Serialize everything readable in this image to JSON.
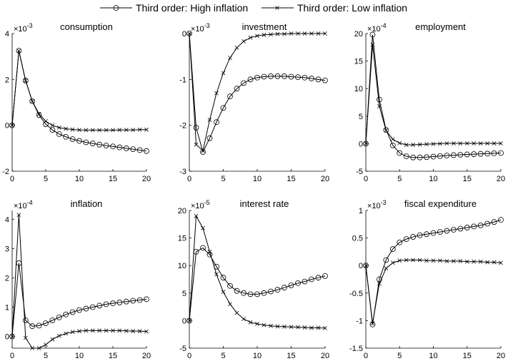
{
  "legend": {
    "high_label": "Third order: High inflation",
    "low_label": "Third order: Low inflation"
  },
  "chart_data": [
    {
      "type": "line",
      "title": "consumption",
      "multiplier": "×10",
      "exponent": "-3",
      "xlim": [
        0,
        20
      ],
      "ylim": [
        -2,
        4
      ],
      "xticks": [
        0,
        5,
        10,
        15,
        20
      ],
      "yticks": [
        -2,
        0,
        2,
        4
      ],
      "x": [
        0,
        1,
        2,
        3,
        4,
        5,
        6,
        7,
        8,
        9,
        10,
        11,
        12,
        13,
        14,
        15,
        16,
        17,
        18,
        19,
        20
      ],
      "series": [
        {
          "name": "Third order: High inflation",
          "marker": "o",
          "values": [
            0,
            3.25,
            1.95,
            1.05,
            0.45,
            0.05,
            -0.2,
            -0.38,
            -0.5,
            -0.6,
            -0.68,
            -0.74,
            -0.79,
            -0.84,
            -0.88,
            -0.92,
            -0.96,
            -1.0,
            -1.04,
            -1.08,
            -1.12
          ]
        },
        {
          "name": "Third order: Low inflation",
          "marker": "x",
          "values": [
            0,
            3.25,
            1.95,
            1.05,
            0.5,
            0.18,
            0.0,
            -0.1,
            -0.15,
            -0.18,
            -0.2,
            -0.21,
            -0.21,
            -0.21,
            -0.21,
            -0.21,
            -0.2,
            -0.2,
            -0.2,
            -0.19,
            -0.19
          ]
        }
      ]
    },
    {
      "type": "line",
      "title": "investment",
      "multiplier": "×10",
      "exponent": "-3",
      "xlim": [
        0,
        20
      ],
      "ylim": [
        -3,
        0
      ],
      "xticks": [
        0,
        5,
        10,
        15,
        20
      ],
      "yticks": [
        -3,
        -2,
        -1,
        0
      ],
      "x": [
        0,
        1,
        2,
        3,
        4,
        5,
        6,
        7,
        8,
        9,
        10,
        11,
        12,
        13,
        14,
        15,
        16,
        17,
        18,
        19,
        20
      ],
      "series": [
        {
          "name": "Third order: High inflation",
          "marker": "o",
          "values": [
            0,
            -2.05,
            -2.58,
            -2.28,
            -1.93,
            -1.62,
            -1.37,
            -1.2,
            -1.08,
            -1.0,
            -0.96,
            -0.94,
            -0.93,
            -0.93,
            -0.93,
            -0.94,
            -0.95,
            -0.96,
            -0.98,
            -1.0,
            -1.02
          ]
        },
        {
          "name": "Third order: Low inflation",
          "marker": "x",
          "values": [
            0,
            -2.42,
            -2.55,
            -1.88,
            -1.3,
            -0.86,
            -0.53,
            -0.31,
            -0.17,
            -0.09,
            -0.05,
            -0.03,
            -0.02,
            -0.01,
            -0.01,
            0,
            0,
            0,
            0,
            0,
            0
          ]
        }
      ]
    },
    {
      "type": "line",
      "title": "employment",
      "multiplier": "×10",
      "exponent": "-4",
      "xlim": [
        0,
        20
      ],
      "ylim": [
        -5,
        20
      ],
      "xticks": [
        0,
        5,
        10,
        15,
        20
      ],
      "yticks": [
        -5,
        0,
        5,
        10,
        15,
        20
      ],
      "x": [
        0,
        1,
        2,
        3,
        4,
        5,
        6,
        7,
        8,
        9,
        10,
        11,
        12,
        13,
        14,
        15,
        16,
        17,
        18,
        19,
        20
      ],
      "series": [
        {
          "name": "Third order: High inflation",
          "marker": "o",
          "values": [
            0,
            19.8,
            8.0,
            2.5,
            -0.3,
            -1.7,
            -2.3,
            -2.5,
            -2.5,
            -2.45,
            -2.35,
            -2.25,
            -2.15,
            -2.08,
            -2.0,
            -1.95,
            -1.9,
            -1.85,
            -1.8,
            -1.75,
            -1.7
          ]
        },
        {
          "name": "Third order: Low inflation",
          "marker": "x",
          "values": [
            0,
            18.0,
            6.8,
            2.4,
            0.8,
            0.1,
            -0.2,
            -0.2,
            -0.15,
            -0.1,
            -0.05,
            0,
            0.05,
            0.05,
            0.05,
            0.05,
            0.05,
            0.05,
            0.05,
            0.05,
            0.05
          ]
        }
      ]
    },
    {
      "type": "line",
      "title": "inflation",
      "multiplier": "×10",
      "exponent": "-4",
      "xlim": [
        0,
        20
      ],
      "ylim": [
        -0.4,
        4.3
      ],
      "xticks": [
        0,
        5,
        10,
        15,
        20
      ],
      "yticks": [
        0,
        1,
        2,
        3,
        4
      ],
      "x": [
        0,
        1,
        2,
        3,
        4,
        5,
        6,
        7,
        8,
        9,
        10,
        11,
        12,
        13,
        14,
        15,
        16,
        17,
        18,
        19,
        20
      ],
      "series": [
        {
          "name": "Third order: High inflation",
          "marker": "o",
          "values": [
            0,
            2.5,
            0.55,
            0.35,
            0.37,
            0.45,
            0.55,
            0.65,
            0.75,
            0.83,
            0.9,
            0.95,
            1.0,
            1.05,
            1.1,
            1.13,
            1.16,
            1.19,
            1.22,
            1.24,
            1.27
          ]
        },
        {
          "name": "Third order: Low inflation",
          "marker": "x",
          "values": [
            0,
            4.15,
            -0.05,
            -0.4,
            -0.4,
            -0.28,
            -0.1,
            0.02,
            0.1,
            0.15,
            0.18,
            0.2,
            0.2,
            0.2,
            0.2,
            0.2,
            0.2,
            0.19,
            0.18,
            0.18,
            0.17
          ]
        }
      ]
    },
    {
      "type": "line",
      "title": "interest rate",
      "multiplier": "×10",
      "exponent": "-5",
      "xlim": [
        0,
        20
      ],
      "ylim": [
        -5,
        20
      ],
      "xticks": [
        0,
        5,
        10,
        15,
        20
      ],
      "yticks": [
        -5,
        0,
        5,
        10,
        15,
        20
      ],
      "x": [
        0,
        1,
        2,
        3,
        4,
        5,
        6,
        7,
        8,
        9,
        10,
        11,
        12,
        13,
        14,
        15,
        16,
        17,
        18,
        19,
        20
      ],
      "series": [
        {
          "name": "Third order: High inflation",
          "marker": "o",
          "values": [
            0,
            12.5,
            13.2,
            12.0,
            9.8,
            7.8,
            6.3,
            5.4,
            5.0,
            4.8,
            4.8,
            5.0,
            5.3,
            5.6,
            6.0,
            6.4,
            6.8,
            7.1,
            7.5,
            7.8,
            8.1
          ]
        },
        {
          "name": "Third order: Low inflation",
          "marker": "x",
          "values": [
            0,
            19.0,
            16.8,
            12.5,
            8.4,
            5.2,
            3.0,
            1.4,
            0.3,
            -0.3,
            -0.6,
            -0.8,
            -0.95,
            -1.05,
            -1.1,
            -1.15,
            -1.2,
            -1.25,
            -1.3,
            -1.3,
            -1.35
          ]
        }
      ]
    },
    {
      "type": "line",
      "title": "fiscal expenditure",
      "multiplier": "×10",
      "exponent": "-3",
      "xlim": [
        0,
        20
      ],
      "ylim": [
        -1.5,
        1
      ],
      "xticks": [
        0,
        5,
        10,
        15,
        20
      ],
      "yticks": [
        -1.5,
        -1,
        -0.5,
        0,
        0.5,
        1
      ],
      "x": [
        0,
        1,
        2,
        3,
        4,
        5,
        6,
        7,
        8,
        9,
        10,
        11,
        12,
        13,
        14,
        15,
        16,
        17,
        18,
        19,
        20
      ],
      "series": [
        {
          "name": "Third order: High inflation",
          "marker": "o",
          "values": [
            0,
            -1.07,
            -0.25,
            0.1,
            0.3,
            0.42,
            0.48,
            0.52,
            0.55,
            0.57,
            0.59,
            0.61,
            0.63,
            0.65,
            0.67,
            0.69,
            0.71,
            0.73,
            0.76,
            0.79,
            0.83
          ]
        },
        {
          "name": "Third order: Low inflation",
          "marker": "x",
          "values": [
            0,
            -1.05,
            -0.33,
            -0.05,
            0.05,
            0.09,
            0.1,
            0.1,
            0.1,
            0.09,
            0.09,
            0.09,
            0.08,
            0.08,
            0.08,
            0.07,
            0.07,
            0.07,
            0.06,
            0.06,
            0.05
          ]
        }
      ]
    }
  ]
}
